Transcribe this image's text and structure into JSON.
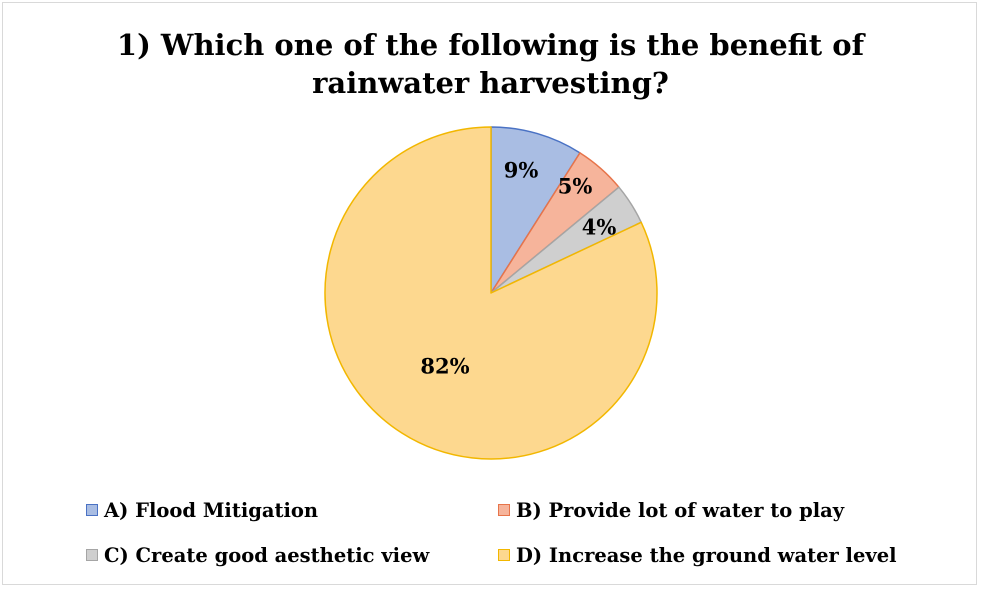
{
  "chart_data": {
    "type": "pie",
    "title": "1) Which one of the following is the benefit of rainwater harvesting?",
    "title_lines": [
      "1) Which one of the following is the benefit of",
      "rainwater harvesting?"
    ],
    "categories": [
      "A) Flood Mitigation",
      "B) Provide lot of water to play",
      "C) Create good aesthetic view",
      "D) Increase the ground water level"
    ],
    "values": [
      9,
      5,
      4,
      82
    ],
    "labels": [
      "9%",
      "5%",
      "4%",
      "82%"
    ],
    "colors": [
      "#a9bde3",
      "#f6b49b",
      "#cfcfcf",
      "#fdd88f"
    ],
    "stroke_colors": [
      "#4a72c4",
      "#e7744a",
      "#a5a5a5",
      "#f2b700"
    ],
    "legend_position": "bottom"
  }
}
